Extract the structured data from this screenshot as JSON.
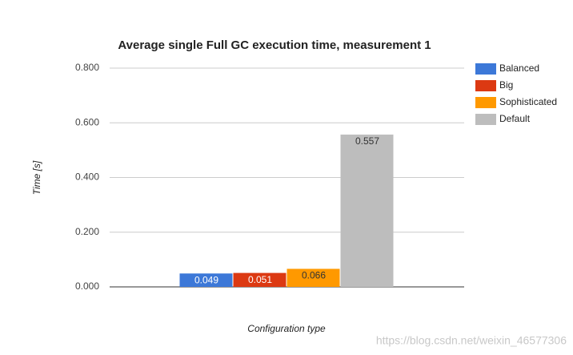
{
  "chart_data": {
    "type": "bar",
    "title": "Average single Full GC execution time, measurement 1",
    "y_label": "Time [s]",
    "x_label": "Configuration type",
    "categories": [
      null
    ],
    "series": [
      {
        "name": "Balanced",
        "color": "#3c78d8",
        "values": [
          0.049
        ]
      },
      {
        "name": "Big",
        "color": "#dc3912",
        "values": [
          0.051
        ]
      },
      {
        "name": "Sophisticated",
        "color": "#ff9900",
        "values": [
          0.066
        ]
      },
      {
        "name": "Default",
        "color": "#bdbdbd",
        "values": [
          0.557
        ]
      }
    ],
    "ylim": [
      0,
      0.8
    ],
    "yticks": [
      {
        "value": 0,
        "label": "0.000"
      },
      {
        "value": 0.2,
        "label": "0.200"
      },
      {
        "value": 0.4,
        "label": "0.400"
      },
      {
        "value": 0.6,
        "label": "0.600"
      },
      {
        "value": 0.8,
        "label": "0.800"
      }
    ],
    "grid": true,
    "legend": "right",
    "watermark": "https://blog.csdn.net/weixin_46577306"
  }
}
